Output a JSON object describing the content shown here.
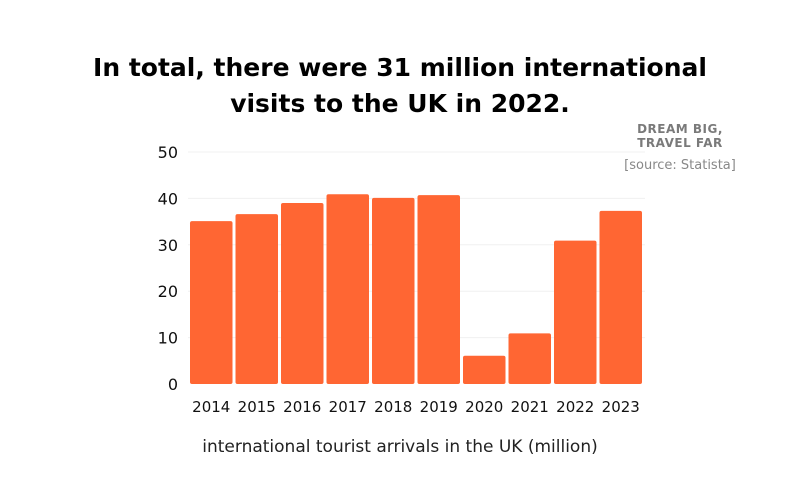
{
  "title_lines": [
    "In total, there were 31 million international",
    "visits to the UK in 2022."
  ],
  "brand_lines": [
    "DREAM BIG,",
    "TRAVEL FAR"
  ],
  "source": "[source: Statista]",
  "chart_data": {
    "type": "bar",
    "categories": [
      "2014",
      "2015",
      "2016",
      "2017",
      "2018",
      "2019",
      "2020",
      "2021",
      "2022",
      "2023"
    ],
    "values": [
      35.1,
      36.6,
      39.0,
      40.9,
      40.1,
      40.7,
      6.1,
      10.9,
      30.9,
      37.3
    ],
    "xlabel": "international tourist arrivals in the UK (million)",
    "ylabel": "",
    "ylim": [
      0,
      50
    ],
    "yticks": [
      0,
      10,
      20,
      30,
      40,
      50
    ],
    "grid": true,
    "bar_color": "#ff6633"
  }
}
